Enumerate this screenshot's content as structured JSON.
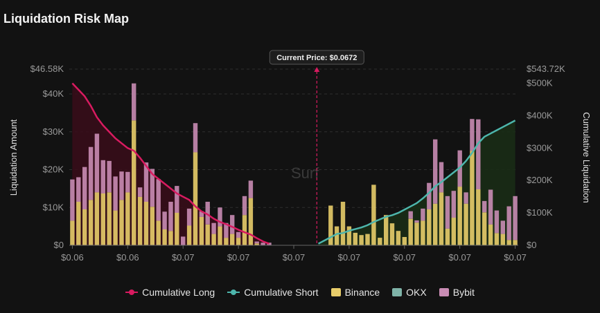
{
  "page": {
    "title": "Liquidation Risk Map"
  },
  "chart_data": {
    "type": "bar",
    "title": "Liquidation Risk Map",
    "ylabel": "Liquidation Amount",
    "y2label": "Cumulative Liquidation",
    "ylim": [
      0,
      46580
    ],
    "y2lim": [
      0,
      543720
    ],
    "y_ticks": [
      "$0",
      "$10K",
      "$20K",
      "$30K",
      "$40K",
      "$46.58K"
    ],
    "y2_ticks": [
      "$0",
      "$100K",
      "$200K",
      "$300K",
      "$400K",
      "$500K",
      "$543.72K"
    ],
    "x_tick_labels": [
      "$0.06",
      "$0.06",
      "$0.07",
      "$0.07",
      "$0.07",
      "$0.07",
      "$0.07",
      "$0.07",
      "$0.07"
    ],
    "current_price_label": "Current Price: $0.0672",
    "current_price_index": 40,
    "watermark": "Surf",
    "colors": {
      "long": "#d81b60",
      "short": "#4db6ac",
      "binance": "#e8cd6a",
      "okx": "#7fb3a8",
      "bybit": "#c98cb4",
      "long_area": "#3a0d1a",
      "short_area": "#1a2c16"
    },
    "legend": [
      "Cumulative Long",
      "Cumulative Short",
      "Binance",
      "OKX",
      "Bybit"
    ],
    "binance": [
      6500,
      11500,
      9500,
      12000,
      14000,
      13700,
      14000,
      9200,
      12000,
      14000,
      33000,
      12800,
      11500,
      10200,
      6500,
      4200,
      3800,
      8600,
      0,
      5200,
      24600,
      7500,
      5500,
      3000,
      5000,
      2000,
      3000,
      2000,
      8000,
      12500,
      500,
      0,
      0,
      0,
      0,
      0,
      0,
      0,
      0,
      0,
      0,
      0,
      10500,
      5000,
      11500,
      5000,
      3300,
      2700,
      3000,
      16000,
      2000,
      8000,
      5800,
      3800,
      2200,
      7000,
      6000,
      6500,
      9500,
      11000,
      14000,
      4400,
      7300,
      15500,
      11000,
      25000,
      14800,
      8700,
      5500,
      3200,
      3000,
      1400,
      1400
    ],
    "okx": [
      0,
      0,
      0,
      0,
      0,
      0,
      0,
      0,
      0,
      0,
      0,
      0,
      0,
      0,
      0,
      0,
      0,
      0,
      0,
      0,
      0,
      0,
      0,
      0,
      0,
      0,
      0,
      0,
      0,
      0,
      0,
      0,
      0,
      0,
      0,
      0,
      0,
      0,
      0,
      0,
      0,
      0,
      0,
      0,
      0,
      0,
      0,
      0,
      0,
      0,
      0,
      0,
      0,
      0,
      0,
      0,
      0,
      0,
      0,
      0,
      0,
      0,
      0,
      0,
      0,
      0,
      0,
      0,
      0,
      0,
      0,
      0,
      0
    ],
    "bybit": [
      10900,
      6500,
      11200,
      14000,
      15500,
      8800,
      8300,
      9000,
      7500,
      5400,
      9800,
      2500,
      10400,
      10000,
      11000,
      4700,
      7700,
      7100,
      2300,
      4500,
      7700,
      1500,
      6000,
      2900,
      5000,
      3900,
      5000,
      1500,
      5000,
      4600,
      500,
      700,
      700,
      0,
      0,
      0,
      0,
      0,
      0,
      0,
      0,
      0,
      0,
      0,
      0,
      0,
      0,
      0,
      0,
      0,
      0,
      0,
      0,
      0,
      0,
      2000,
      600,
      3200,
      7000,
      17000,
      8000,
      8600,
      7100,
      9600,
      3000,
      8400,
      18500,
      3000,
      9200,
      6000,
      3500,
      8900,
      11600
    ],
    "cumulative_long": [
      500000,
      480000,
      460000,
      430000,
      395000,
      370000,
      350000,
      330000,
      315000,
      300000,
      292000,
      270000,
      245000,
      220000,
      205000,
      190000,
      175000,
      160000,
      150000,
      140000,
      120000,
      105000,
      95000,
      82000,
      72000,
      65000,
      57000,
      48000,
      40000,
      33000,
      22000,
      12000,
      5000
    ],
    "cumulative_short": [
      5000,
      15000,
      25000,
      35000,
      38000,
      45000,
      50000,
      55000,
      62000,
      72000,
      80000,
      88000,
      93000,
      100000,
      110000,
      120000,
      130000,
      145000,
      162000,
      182000,
      195000,
      210000,
      225000,
      240000,
      260000,
      285000,
      315000,
      335000,
      345000,
      355000,
      365000,
      375000,
      385000
    ]
  }
}
